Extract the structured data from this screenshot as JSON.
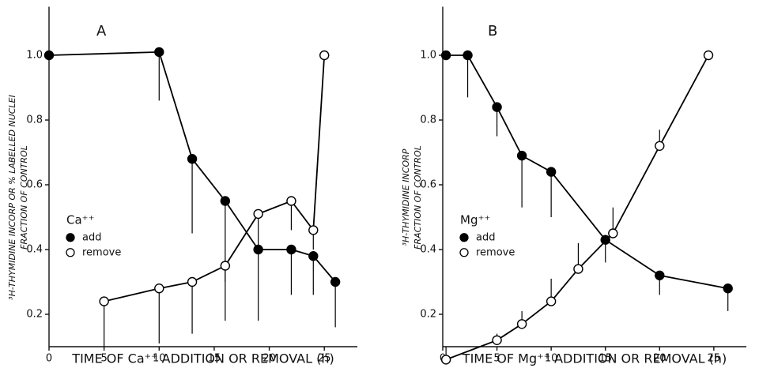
{
  "chart_data": [
    {
      "type": "line",
      "title": "A",
      "xlabel": "TIME OF Ca⁺⁺ ADDITION OR REMOVAL (h)",
      "ylabel": [
        "³H-THYMIDINE INCORP OR % LABELLED NUCLEI",
        "FRACTION OF CONTROL"
      ],
      "xlim": [
        0,
        28
      ],
      "xticks": [
        0,
        5,
        10,
        15,
        20,
        25
      ],
      "ylim": [
        0.1,
        1.15
      ],
      "yticks": [
        0.2,
        0.4,
        0.6,
        0.8,
        {
          "value": 1,
          "label": "1.0"
        }
      ],
      "legend_title": "Ca⁺⁺",
      "legend_position": "center left",
      "series": [
        {
          "name": "add",
          "color": "#000",
          "marker": "filled",
          "error_direction": "down",
          "x": [
            0,
            10,
            13,
            16,
            19,
            22,
            24,
            26
          ],
          "values": [
            1.0,
            1.01,
            0.68,
            0.55,
            0.4,
            0.4,
            0.38,
            0.3
          ],
          "errors": [
            0,
            0.15,
            0.23,
            0.25,
            0.22,
            0.14,
            0.12,
            0.14
          ]
        },
        {
          "name": "remove",
          "color": "#000",
          "marker": "open",
          "error_direction": "down",
          "x": [
            5,
            10,
            13,
            16,
            19,
            22,
            24,
            25
          ],
          "values": [
            0.24,
            0.28,
            0.3,
            0.35,
            0.51,
            0.55,
            0.46,
            1.0
          ],
          "errors": [
            0.14,
            0.17,
            0.16,
            0.17,
            0.1,
            0.09,
            0.06,
            0
          ]
        }
      ]
    },
    {
      "type": "line",
      "title": "B",
      "xlabel": "TIME OF Mg⁺⁺ ADDITION OR REMOVAL (h)",
      "ylabel": [
        "³H-THYMIDINE INCORP",
        "FRACTION OF CONTROL"
      ],
      "xlim": [
        0,
        28
      ],
      "xticks": [
        0,
        5,
        10,
        15,
        20,
        25
      ],
      "ylim": [
        0.1,
        1.15
      ],
      "yticks": [
        0.2,
        0.4,
        0.6,
        0.8,
        {
          "value": 1,
          "label": "1.0"
        }
      ],
      "legend_title": "Mg⁺⁺",
      "legend_position": "center left",
      "series": [
        {
          "name": "add",
          "color": "#000",
          "marker": "filled",
          "error_direction": "down",
          "x": [
            0.3,
            2.3,
            5,
            7.3,
            10,
            15,
            20,
            26.3
          ],
          "values": [
            1.0,
            1.0,
            0.84,
            0.69,
            0.64,
            0.43,
            0.32,
            0.28
          ],
          "errors": [
            0,
            0.13,
            0.09,
            0.16,
            0.14,
            0.07,
            0.06,
            0.07
          ]
        },
        {
          "name": "remove",
          "color": "#000",
          "marker": "open",
          "error_direction": "up",
          "x": [
            0.3,
            5,
            7.3,
            10,
            12.5,
            15.7,
            20,
            24.5
          ],
          "values": [
            0.06,
            0.12,
            0.17,
            0.24,
            0.34,
            0.45,
            0.72,
            1.0
          ],
          "errors": [
            0.04,
            0.02,
            0.04,
            0.07,
            0.08,
            0.08,
            0.05,
            0
          ]
        }
      ]
    }
  ]
}
